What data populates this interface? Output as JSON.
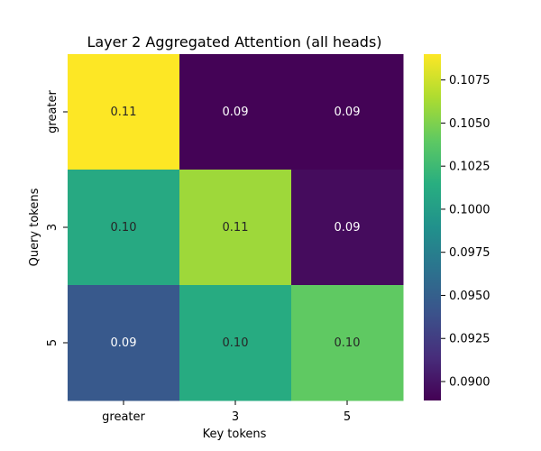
{
  "chart_data": {
    "type": "heatmap",
    "title": "Layer 2 Aggregated Attention (all heads)",
    "xlabel": "Key tokens",
    "ylabel": "Query tokens",
    "x_categories": [
      "greater",
      "3",
      "5"
    ],
    "y_categories": [
      "greater",
      "3",
      "5"
    ],
    "values": [
      [
        0.109,
        0.089,
        0.089
      ],
      [
        0.101,
        0.106,
        0.0895
      ],
      [
        0.0945,
        0.1012,
        0.104
      ]
    ],
    "cell_labels": [
      [
        "0.11",
        "0.09",
        "0.09"
      ],
      [
        "0.10",
        "0.11",
        "0.09"
      ],
      [
        "0.09",
        "0.10",
        "0.10"
      ]
    ],
    "colormap": "viridis",
    "colorbar": {
      "range": [
        0.0889,
        0.109
      ],
      "ticks": [
        0.09,
        0.0925,
        0.095,
        0.0975,
        0.1,
        0.1025,
        0.105,
        0.1075
      ],
      "tick_labels": [
        "0.0900",
        "0.0925",
        "0.0950",
        "0.0975",
        "0.1000",
        "0.1025",
        "0.1050",
        "0.1075"
      ]
    }
  }
}
